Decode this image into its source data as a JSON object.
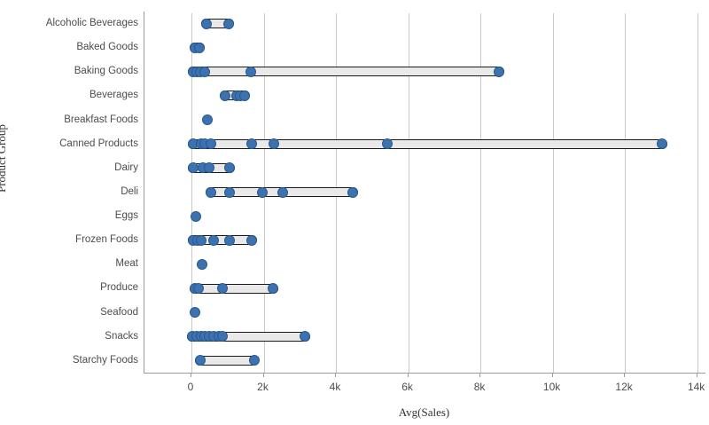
{
  "chart_data": {
    "type": "scatter",
    "variant": "distribution-plot",
    "title": "",
    "xlabel": "Avg(Sales)",
    "ylabel": "Product Group",
    "legend": "none",
    "grid": "vertical",
    "xlim": [
      0,
      14000
    ],
    "x_ticks": {
      "values": [
        0,
        2000,
        4000,
        6000,
        8000,
        10000,
        12000,
        14000
      ],
      "labels": [
        "0",
        "2k",
        "4k",
        "6k",
        "8k",
        "10k",
        "12k",
        "14k"
      ]
    },
    "categories": [
      "Alcoholic Beverages",
      "Baked Goods",
      "Baking Goods",
      "Beverages",
      "Breakfast Foods",
      "Canned Products",
      "Dairy",
      "Deli",
      "Eggs",
      "Frozen Foods",
      "Meat",
      "Produce",
      "Seafood",
      "Snacks",
      "Starchy Foods"
    ],
    "rows": [
      {
        "category": "Alcoholic Beverages",
        "values": [
          410,
          1030
        ]
      },
      {
        "category": "Baked Goods",
        "values": [
          90,
          230
        ]
      },
      {
        "category": "Baking Goods",
        "values": [
          40,
          140,
          250,
          370,
          1650,
          8520
        ]
      },
      {
        "category": "Beverages",
        "values": [
          930,
          1250,
          1360,
          1480
        ]
      },
      {
        "category": "Breakfast Foods",
        "values": [
          440
        ]
      },
      {
        "category": "Canned Products",
        "values": [
          60,
          260,
          360,
          530,
          1670,
          2280,
          5430,
          13040
        ]
      },
      {
        "category": "Dairy",
        "values": [
          60,
          320,
          500,
          1060
        ]
      },
      {
        "category": "Deli",
        "values": [
          540,
          1050,
          1960,
          2530,
          4470
        ]
      },
      {
        "category": "Eggs",
        "values": [
          120
        ]
      },
      {
        "category": "Frozen Foods",
        "values": [
          50,
          170,
          270,
          620,
          1060,
          1680
        ]
      },
      {
        "category": "Meat",
        "values": [
          300
        ]
      },
      {
        "category": "Produce",
        "values": [
          100,
          200,
          860,
          2250
        ]
      },
      {
        "category": "Seafood",
        "values": [
          100
        ]
      },
      {
        "category": "Snacks",
        "values": [
          30,
          140,
          260,
          370,
          500,
          620,
          760,
          860,
          3140
        ]
      },
      {
        "category": "Starchy Foods",
        "values": [
          250,
          1730
        ]
      }
    ],
    "colors": {
      "point_fill": "#3d72b0",
      "point_border": "#2a5990",
      "bar_fill": "#e9e9e9",
      "bar_border": "#1a1a1a",
      "grid": "#c9c9c9",
      "axis": "#9b9b9b",
      "text": "#4c4c4c"
    }
  }
}
